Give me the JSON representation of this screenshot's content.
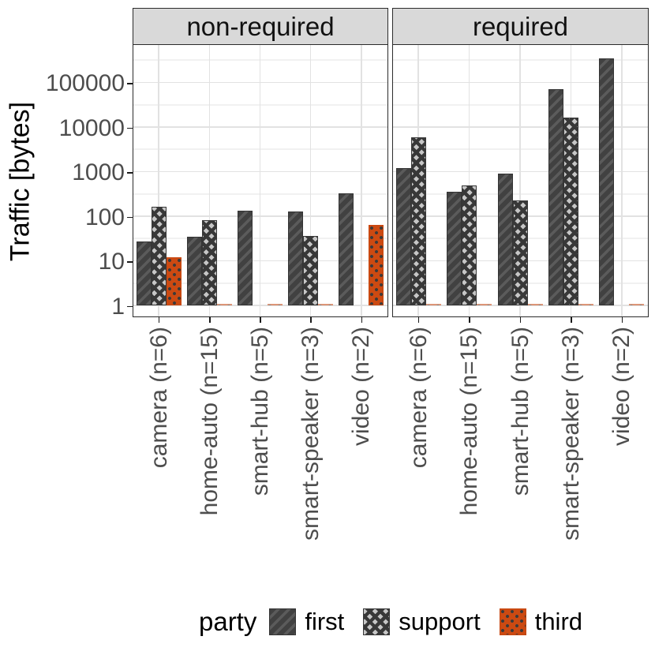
{
  "chart_data": {
    "type": "bar",
    "scale": "log10",
    "title": "",
    "xlabel": "",
    "ylabel": "Traffic [bytes]",
    "y_ticks": [
      1,
      10,
      100,
      1000,
      10000,
      100000
    ],
    "y_tick_labels": [
      "1",
      "10",
      "100",
      "1000",
      "10000",
      "100000"
    ],
    "ylim_log_decades": [
      -0.27,
      5.84
    ],
    "grid": "major+minor horizontal, major vertical",
    "legend_position": "bottom",
    "categories": [
      "camera (n=6)",
      "home-auto (n=15)",
      "smart-hub (n=5)",
      "smart-speaker (n=3)",
      "video (n=2)"
    ],
    "facets": [
      {
        "label": "non-required",
        "series": [
          {
            "name": "first",
            "values": [
              27,
              35,
              135,
              130,
              320
            ]
          },
          {
            "name": "support",
            "values": [
              165,
              82,
              null,
              36,
              null
            ]
          },
          {
            "name": "third",
            "values": [
              12,
              1.1,
              1.1,
              1.1,
              65
            ]
          }
        ]
      },
      {
        "label": "required",
        "series": [
          {
            "name": "first",
            "values": [
              1200,
              360,
              900,
              70000,
              350000
            ]
          },
          {
            "name": "support",
            "values": [
              6000,
              500,
              230,
              16000,
              null
            ]
          },
          {
            "name": "third",
            "values": [
              1.1,
              1.1,
              1.1,
              1.1,
              1.1
            ]
          }
        ]
      }
    ],
    "legend": {
      "title": "party",
      "entries": [
        {
          "label": "first",
          "pattern": "diagonal-stripe"
        },
        {
          "label": "support",
          "pattern": "crosshatch"
        },
        {
          "label": "third",
          "pattern": "dots"
        }
      ]
    },
    "colors": {
      "first_fill": "#414141",
      "first_stripe": "#5B5B5B",
      "support_fill": "#C6C6C6",
      "support_hatch": "#383838",
      "third_fill": "#CC4A12",
      "third_dot": "#3A3A3A",
      "strip_bg": "#D9D9D9",
      "panel_border": "#2B2B2B",
      "grid_major": "#E2E2E2",
      "grid_minor": "#F1F1F1",
      "axis_text": "#4D4D4D"
    }
  }
}
